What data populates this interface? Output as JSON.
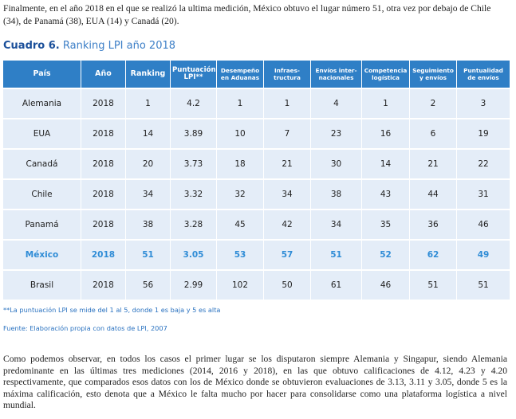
{
  "intro_text": "Finalmente, en el año 2018 en el que se realizó la ultima medición, México obtuvo el lugar número 51, otra vez por debajo de Chile (34), de Panamá (38), EUA (14) y Canadá (20).",
  "caption": {
    "label": "Cuadro 6.",
    "title": "Ranking LPI año 2018"
  },
  "table": {
    "headers": [
      "País",
      "Año",
      "Ranking",
      "Puntuación LPI**",
      "Desempeño en Aduanas",
      "Infraes-tructura",
      "Envíos inter-nacionales",
      "Competencia logística",
      "Seguimiento y envíos",
      "Puntualidad de envíos"
    ],
    "rows": [
      [
        "Alemania",
        "2018",
        "1",
        "4.2",
        "1",
        "1",
        "4",
        "1",
        "2",
        "3"
      ],
      [
        "EUA",
        "2018",
        "14",
        "3.89",
        "10",
        "7",
        "23",
        "16",
        "6",
        "19"
      ],
      [
        "Canadá",
        "2018",
        "20",
        "3.73",
        "18",
        "21",
        "30",
        "14",
        "21",
        "22"
      ],
      [
        "Chile",
        "2018",
        "34",
        "3.32",
        "32",
        "34",
        "38",
        "43",
        "44",
        "31"
      ],
      [
        "Panamá",
        "2018",
        "38",
        "3.28",
        "45",
        "42",
        "34",
        "35",
        "36",
        "46"
      ],
      [
        "México",
        "2018",
        "51",
        "3.05",
        "53",
        "57",
        "51",
        "52",
        "62",
        "49"
      ],
      [
        "Brasil",
        "2018",
        "56",
        "2.99",
        "102",
        "50",
        "61",
        "46",
        "51",
        "51"
      ]
    ],
    "highlight_color": "#2f8cd6",
    "header_color": "#2f7fc6",
    "row_color": "#e4edf8"
  },
  "footnote": "**La puntuación LPI se mide del 1 al 5, donde 1 es baja y 5 es alta",
  "source": "Fuente: Elaboración propia con datos de LPI, 2007",
  "closing_text": "Como podemos observar, en todos los casos el primer lugar se los disputaron siempre Alemania y Singapur, siendo Alemania predominante en las últimas tres mediciones (2014, 2016 y 2018), en las que obtuvo calificaciones de 4.12, 4.23 y 4.20 respectivamente, que comparados esos datos con los de México donde se obtuvieron evaluaciones de 3.13, 3.11 y 3.05, donde 5 es la máxima calificación, esto denota que a México le falta mucho por hacer para consolidarse como una plataforma logística a nivel mundial."
}
